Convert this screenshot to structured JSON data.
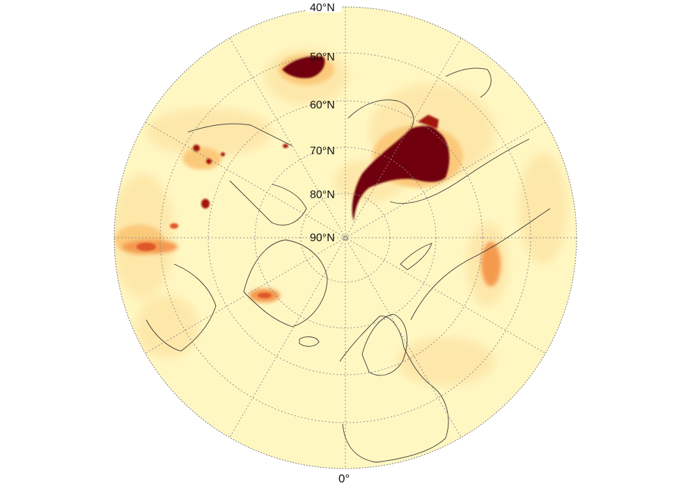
{
  "map": {
    "projection": "north-polar-stereographic",
    "colormap": [
      "#fff7c2",
      "#fde6a8",
      "#fbc97a",
      "#f49a4f",
      "#e0572a",
      "#a3150d",
      "#6f0008"
    ],
    "latitude_labels": [
      "40°N",
      "50°N",
      "60°N",
      "70°N",
      "80°N",
      "90°N"
    ],
    "longitude_label": "0°"
  }
}
